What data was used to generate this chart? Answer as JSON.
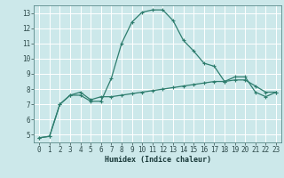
{
  "xlabel": "Humidex (Indice chaleur)",
  "bg_color": "#cce8ea",
  "grid_color": "#ffffff",
  "line_color": "#2e7d6e",
  "xlim": [
    -0.5,
    23.5
  ],
  "ylim": [
    4.5,
    13.5
  ],
  "xticks": [
    0,
    1,
    2,
    3,
    4,
    5,
    6,
    7,
    8,
    9,
    10,
    11,
    12,
    13,
    14,
    15,
    16,
    17,
    18,
    19,
    20,
    21,
    22,
    23
  ],
  "yticks": [
    5,
    6,
    7,
    8,
    9,
    10,
    11,
    12,
    13
  ],
  "series1_x": [
    0,
    1,
    2,
    3,
    4,
    5,
    6,
    7,
    8,
    9,
    10,
    11,
    12,
    13,
    14,
    15,
    16,
    17,
    18,
    19,
    20,
    21,
    22,
    23
  ],
  "series1_y": [
    4.8,
    4.9,
    7.0,
    7.6,
    7.6,
    7.2,
    7.2,
    8.7,
    11.0,
    12.4,
    13.05,
    13.2,
    13.2,
    12.5,
    11.2,
    10.5,
    9.7,
    9.5,
    8.5,
    8.8,
    8.8,
    7.8,
    7.5,
    7.8
  ],
  "series2_x": [
    0,
    1,
    2,
    3,
    4,
    5,
    6,
    7,
    8,
    9,
    10,
    11,
    12,
    13,
    14,
    15,
    16,
    17,
    18,
    19,
    20,
    21,
    22,
    23
  ],
  "series2_y": [
    4.8,
    4.9,
    7.0,
    7.6,
    7.8,
    7.3,
    7.5,
    7.5,
    7.6,
    7.7,
    7.8,
    7.9,
    8.0,
    8.1,
    8.2,
    8.3,
    8.4,
    8.5,
    8.5,
    8.6,
    8.6,
    8.2,
    7.8,
    7.8
  ],
  "tick_fontsize": 5.5,
  "xlabel_fontsize": 6.0
}
